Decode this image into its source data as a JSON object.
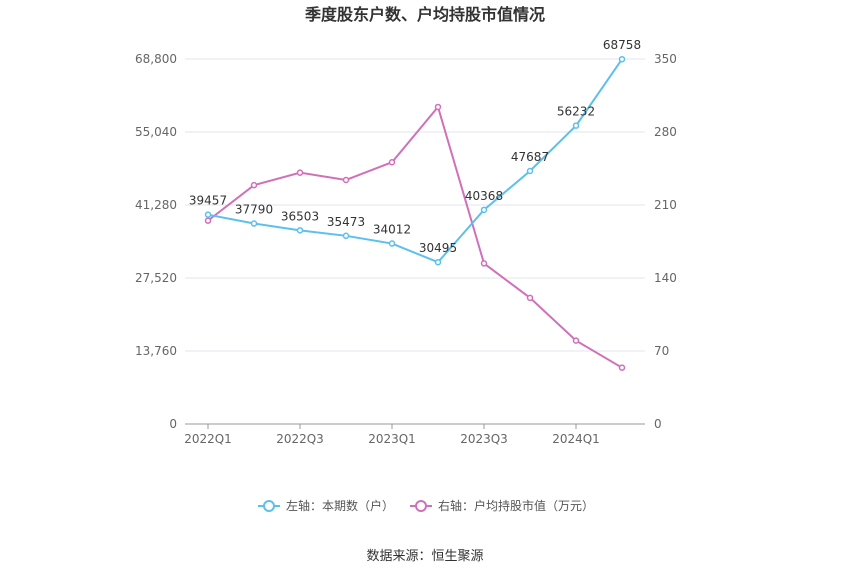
{
  "chart_data": {
    "type": "line",
    "title": "季度股东户数、户均持股市值情况",
    "x": [
      "2022Q1",
      "2022Q2",
      "2022Q3",
      "2022Q4",
      "2023Q1",
      "2023Q2",
      "2023Q3",
      "2023Q4",
      "2024Q1",
      "2024Q2"
    ],
    "x_tick_labels": [
      "2022Q1",
      "2022Q3",
      "2023Q1",
      "2023Q3",
      "2024Q1"
    ],
    "left_axis": {
      "ylim": [
        0,
        68800
      ],
      "ticks": [
        "0",
        "13,760",
        "27,520",
        "41,280",
        "55,040",
        "68,800"
      ]
    },
    "right_axis": {
      "ylim": [
        0,
        350
      ],
      "ticks": [
        "0",
        "70",
        "140",
        "210",
        "280",
        "350"
      ]
    },
    "series": [
      {
        "name": "左轴：本期数（户）",
        "axis": "left",
        "color": "#5bc0eb",
        "values": [
          39457,
          37790,
          36503,
          35473,
          34012,
          30495,
          40368,
          47687,
          56232,
          68758
        ],
        "labels": [
          "39457",
          "37790",
          "36503",
          "35473",
          "34012",
          "30495",
          "40368",
          "47687",
          "56232",
          "68758"
        ]
      },
      {
        "name": "右轴：户均持股市值（万元）",
        "axis": "right",
        "color": "#d070b8",
        "values": [
          195,
          229,
          241,
          234,
          251,
          304,
          154,
          121,
          80,
          54
        ]
      }
    ],
    "grid": true,
    "legend_position": "bottom",
    "source": "数据来源：恒生聚源"
  }
}
